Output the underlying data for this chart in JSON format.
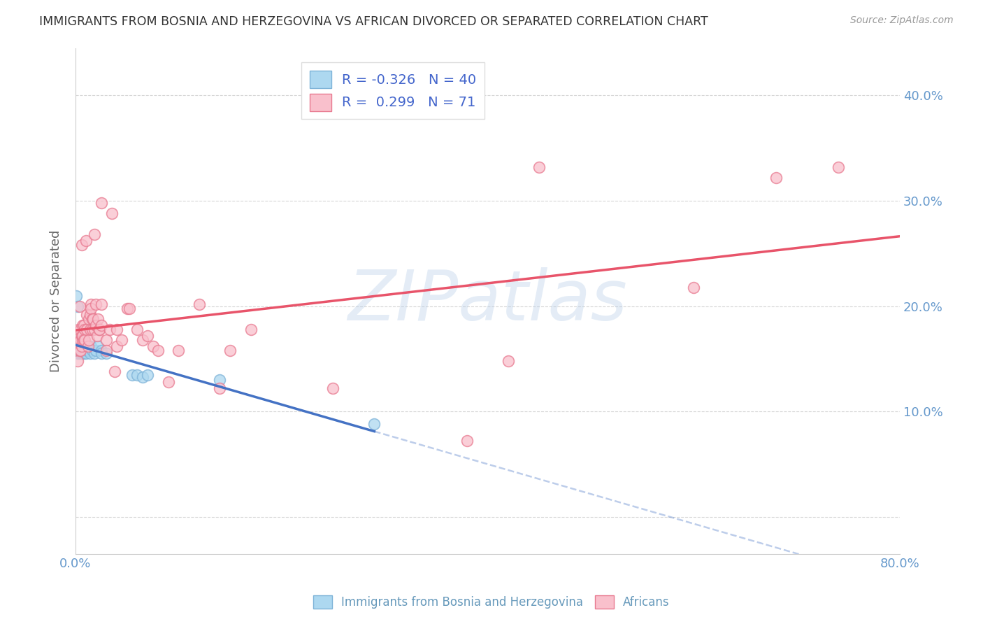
{
  "title": "IMMIGRANTS FROM BOSNIA AND HERZEGOVINA VS AFRICAN DIVORCED OR SEPARATED CORRELATION CHART",
  "source": "Source: ZipAtlas.com",
  "ylabel": "Divorced or Separated",
  "watermark": "ZIPatlas",
  "legend": {
    "blue_R": -0.326,
    "blue_N": 40,
    "pink_R": 0.299,
    "pink_N": 71,
    "blue_label": "Immigrants from Bosnia and Herzegovina",
    "pink_label": "Africans"
  },
  "ytick_vals": [
    0.0,
    0.1,
    0.2,
    0.3,
    0.4
  ],
  "ytick_labels": [
    "",
    "10.0%",
    "20.0%",
    "30.0%",
    "40.0%"
  ],
  "xlim": [
    0.0,
    0.8
  ],
  "ylim": [
    -0.035,
    0.445
  ],
  "blue_scatter": [
    [
      0.001,
      0.21
    ],
    [
      0.002,
      0.2
    ],
    [
      0.002,
      0.155
    ],
    [
      0.003,
      0.165
    ],
    [
      0.003,
      0.155
    ],
    [
      0.004,
      0.16
    ],
    [
      0.004,
      0.158
    ],
    [
      0.005,
      0.165
    ],
    [
      0.005,
      0.158
    ],
    [
      0.005,
      0.155
    ],
    [
      0.006,
      0.16
    ],
    [
      0.006,
      0.155
    ],
    [
      0.007,
      0.165
    ],
    [
      0.007,
      0.158
    ],
    [
      0.007,
      0.155
    ],
    [
      0.008,
      0.162
    ],
    [
      0.008,
      0.155
    ],
    [
      0.009,
      0.162
    ],
    [
      0.009,
      0.158
    ],
    [
      0.01,
      0.162
    ],
    [
      0.01,
      0.158
    ],
    [
      0.01,
      0.155
    ],
    [
      0.011,
      0.16
    ],
    [
      0.012,
      0.158
    ],
    [
      0.013,
      0.158
    ],
    [
      0.014,
      0.155
    ],
    [
      0.015,
      0.162
    ],
    [
      0.016,
      0.158
    ],
    [
      0.018,
      0.155
    ],
    [
      0.02,
      0.158
    ],
    [
      0.022,
      0.162
    ],
    [
      0.025,
      0.158
    ],
    [
      0.025,
      0.155
    ],
    [
      0.03,
      0.155
    ],
    [
      0.055,
      0.135
    ],
    [
      0.06,
      0.135
    ],
    [
      0.065,
      0.133
    ],
    [
      0.07,
      0.135
    ],
    [
      0.14,
      0.13
    ],
    [
      0.29,
      0.088
    ]
  ],
  "pink_scatter": [
    [
      0.001,
      0.165
    ],
    [
      0.002,
      0.148
    ],
    [
      0.003,
      0.165
    ],
    [
      0.003,
      0.178
    ],
    [
      0.004,
      0.158
    ],
    [
      0.004,
      0.2
    ],
    [
      0.005,
      0.168
    ],
    [
      0.005,
      0.178
    ],
    [
      0.005,
      0.158
    ],
    [
      0.006,
      0.172
    ],
    [
      0.006,
      0.162
    ],
    [
      0.006,
      0.258
    ],
    [
      0.007,
      0.168
    ],
    [
      0.007,
      0.182
    ],
    [
      0.007,
      0.172
    ],
    [
      0.008,
      0.168
    ],
    [
      0.008,
      0.182
    ],
    [
      0.009,
      0.178
    ],
    [
      0.009,
      0.168
    ],
    [
      0.01,
      0.262
    ],
    [
      0.011,
      0.178
    ],
    [
      0.011,
      0.192
    ],
    [
      0.012,
      0.162
    ],
    [
      0.013,
      0.168
    ],
    [
      0.013,
      0.188
    ],
    [
      0.014,
      0.178
    ],
    [
      0.014,
      0.192
    ],
    [
      0.015,
      0.202
    ],
    [
      0.015,
      0.198
    ],
    [
      0.016,
      0.188
    ],
    [
      0.016,
      0.178
    ],
    [
      0.017,
      0.188
    ],
    [
      0.018,
      0.178
    ],
    [
      0.018,
      0.268
    ],
    [
      0.02,
      0.182
    ],
    [
      0.02,
      0.202
    ],
    [
      0.021,
      0.172
    ],
    [
      0.022,
      0.188
    ],
    [
      0.023,
      0.178
    ],
    [
      0.023,
      0.178
    ],
    [
      0.025,
      0.182
    ],
    [
      0.025,
      0.202
    ],
    [
      0.025,
      0.298
    ],
    [
      0.03,
      0.168
    ],
    [
      0.03,
      0.158
    ],
    [
      0.033,
      0.178
    ],
    [
      0.035,
      0.288
    ],
    [
      0.038,
      0.138
    ],
    [
      0.04,
      0.162
    ],
    [
      0.04,
      0.178
    ],
    [
      0.045,
      0.168
    ],
    [
      0.05,
      0.198
    ],
    [
      0.052,
      0.198
    ],
    [
      0.06,
      0.178
    ],
    [
      0.065,
      0.168
    ],
    [
      0.07,
      0.172
    ],
    [
      0.075,
      0.162
    ],
    [
      0.08,
      0.158
    ],
    [
      0.09,
      0.128
    ],
    [
      0.1,
      0.158
    ],
    [
      0.12,
      0.202
    ],
    [
      0.14,
      0.122
    ],
    [
      0.15,
      0.158
    ],
    [
      0.17,
      0.178
    ],
    [
      0.25,
      0.122
    ],
    [
      0.38,
      0.072
    ],
    [
      0.42,
      0.148
    ],
    [
      0.45,
      0.332
    ],
    [
      0.6,
      0.218
    ],
    [
      0.68,
      0.322
    ],
    [
      0.74,
      0.332
    ]
  ],
  "blue_line_color": "#4472C4",
  "pink_line_color": "#E8546A",
  "blue_marker_facecolor": "#ADD8F0",
  "blue_marker_edgecolor": "#7EB3D8",
  "pink_marker_facecolor": "#F9C0CC",
  "pink_marker_edgecolor": "#E87A90",
  "background_color": "#ffffff",
  "grid_color": "#cccccc",
  "tick_color": "#6699cc",
  "title_color": "#333333",
  "source_color": "#999999",
  "ylabel_color": "#666666",
  "legend_label_color": "#4466cc"
}
